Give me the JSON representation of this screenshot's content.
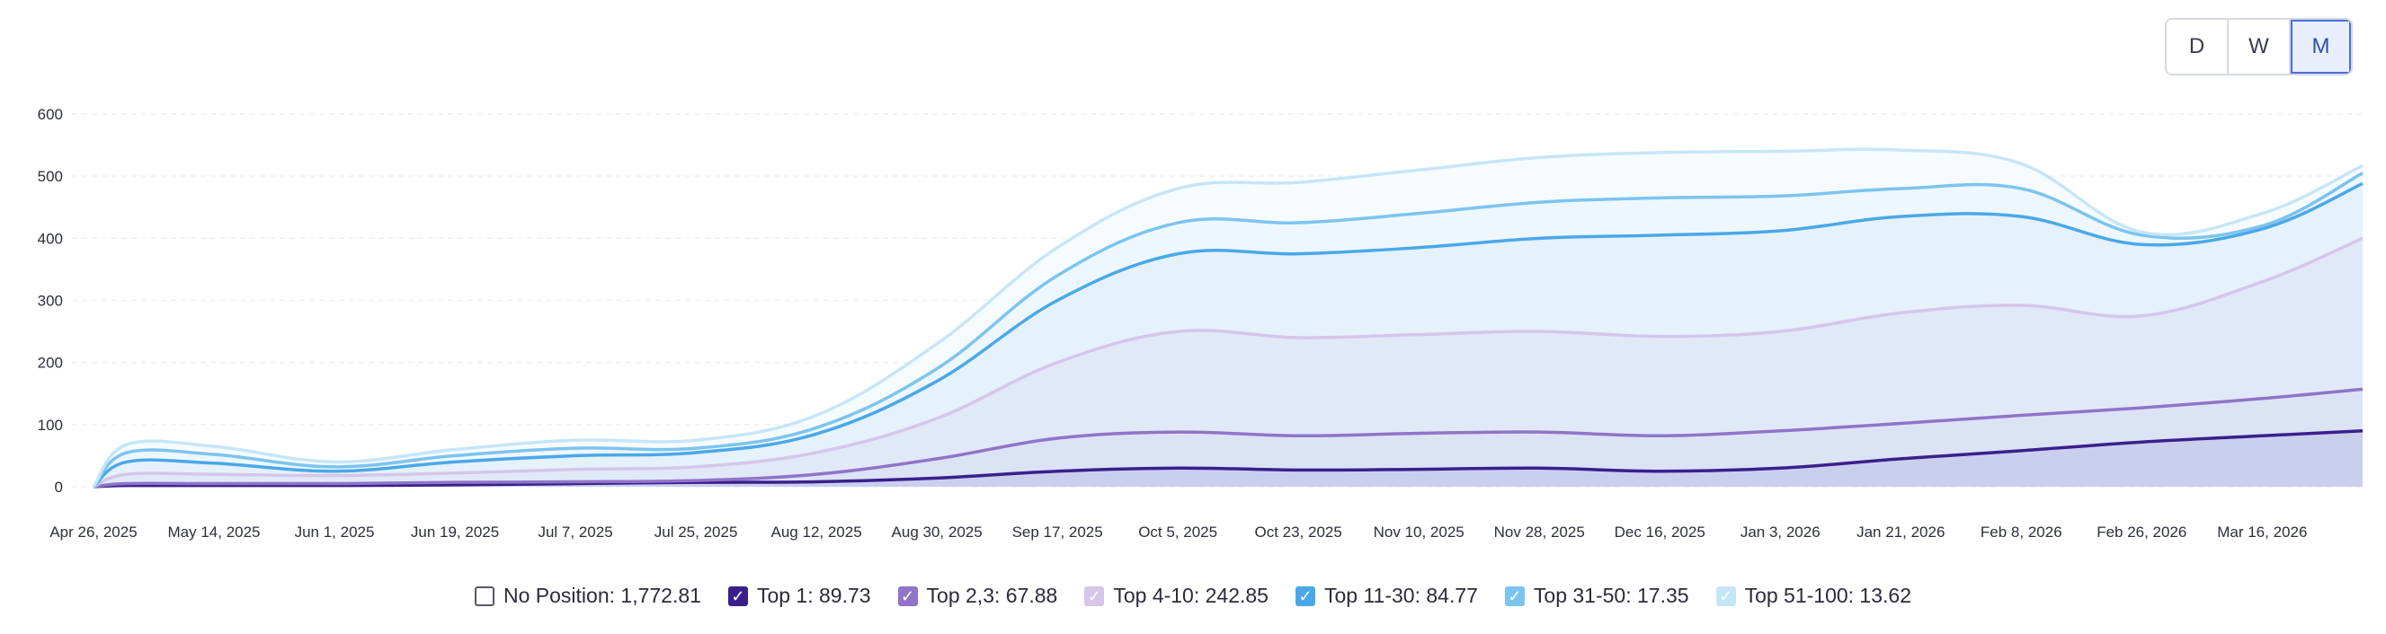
{
  "toggle": {
    "options": [
      "D",
      "W",
      "M"
    ],
    "active": "M"
  },
  "legend": [
    {
      "label": "No Position: 1,772.81",
      "checked": false,
      "color": "#ffffff",
      "border": "#555a6a"
    },
    {
      "label": "Top 1: 89.73",
      "checked": true,
      "color": "#3a1f8c",
      "border": "#3a1f8c"
    },
    {
      "label": "Top 2,3: 67.88",
      "checked": true,
      "color": "#8f74c8",
      "border": "#8f74c8"
    },
    {
      "label": "Top 4-10: 242.85",
      "checked": true,
      "color": "#d5c6ea",
      "border": "#d5c6ea"
    },
    {
      "label": "Top 11-30: 84.77",
      "checked": true,
      "color": "#4aa8e8",
      "border": "#4aa8e8"
    },
    {
      "label": "Top 31-50: 17.35",
      "checked": true,
      "color": "#7cc4f0",
      "border": "#7cc4f0"
    },
    {
      "label": "Top 51-100: 13.62",
      "checked": true,
      "color": "#c6e6f8",
      "border": "#c6e6f8"
    }
  ],
  "chart_data": {
    "type": "area",
    "stacked": true,
    "x_tick_labels": [
      "Apr 26, 2025",
      "May 14, 2025",
      "Jun 1, 2025",
      "Jun 19, 2025",
      "Jul 7, 2025",
      "Jul 25, 2025",
      "Aug 12, 2025",
      "Aug 30, 2025",
      "Sep 17, 2025",
      "Oct 5, 2025",
      "Oct 23, 2025",
      "Nov 10, 2025",
      "Nov 28, 2025",
      "Dec 16, 2025",
      "Jan 3, 2026",
      "Jan 21, 2026",
      "Feb 8, 2026",
      "Feb 26, 2026",
      "Mar 16, 2026"
    ],
    "x_dates": [
      "Apr 26, 2025",
      "May 1, 2025",
      "May 14, 2025",
      "Jun 1, 2025",
      "Jun 19, 2025",
      "Jul 7, 2025",
      "Jul 25, 2025",
      "Aug 12, 2025",
      "Aug 30, 2025",
      "Sep 17, 2025",
      "Oct 5, 2025",
      "Oct 23, 2025",
      "Nov 10, 2025",
      "Nov 28, 2025",
      "Dec 16, 2025",
      "Jan 3, 2026",
      "Jan 21, 2026",
      "Feb 8, 2026",
      "Feb 26, 2026",
      "Mar 16, 2026",
      "Mar 31, 2026"
    ],
    "y_ticks": [
      0,
      100,
      200,
      300,
      400,
      500,
      600
    ],
    "ylim": [
      0,
      600
    ],
    "grid": true,
    "legend_position": "bottom",
    "series": [
      {
        "name": "Top 1",
        "color": "#3a1f8c",
        "fill": "#cbcfee",
        "values": [
          0,
          2,
          2,
          2,
          3,
          5,
          7,
          8,
          14,
          25,
          30,
          27,
          28,
          30,
          25,
          30,
          45,
          58,
          72,
          82,
          90
        ]
      },
      {
        "name": "Top 2,3",
        "color": "#8f74c8",
        "fill": "#dce3f5",
        "values": [
          0,
          5,
          5,
          5,
          7,
          8,
          10,
          20,
          45,
          78,
          88,
          82,
          86,
          88,
          82,
          90,
          102,
          115,
          127,
          142,
          157
        ]
      },
      {
        "name": "Top 4-10",
        "color": "#d5c6ea",
        "fill": "#e1e9f8",
        "values": [
          0,
          20,
          20,
          18,
          22,
          28,
          32,
          55,
          110,
          200,
          250,
          240,
          245,
          250,
          242,
          250,
          280,
          292,
          275,
          330,
          400
        ]
      },
      {
        "name": "Top 11-30",
        "color": "#4aa8e8",
        "fill": "#e5f1fb",
        "values": [
          0,
          40,
          38,
          25,
          40,
          50,
          55,
          85,
          170,
          300,
          375,
          375,
          385,
          400,
          405,
          412,
          435,
          435,
          390,
          415,
          488
        ]
      },
      {
        "name": "Top 31-50",
        "color": "#7cc4f0",
        "fill": "#eef7fd",
        "values": [
          0,
          55,
          52,
          32,
          50,
          62,
          62,
          95,
          190,
          340,
          425,
          425,
          440,
          458,
          465,
          468,
          480,
          480,
          405,
          420,
          505
        ]
      },
      {
        "name": "Top 51-100",
        "color": "#c6e6f8",
        "fill": "#f6fbfe",
        "values": [
          0,
          68,
          65,
          40,
          60,
          75,
          75,
          115,
          230,
          385,
          480,
          490,
          510,
          530,
          538,
          540,
          542,
          520,
          410,
          440,
          517
        ]
      }
    ]
  }
}
